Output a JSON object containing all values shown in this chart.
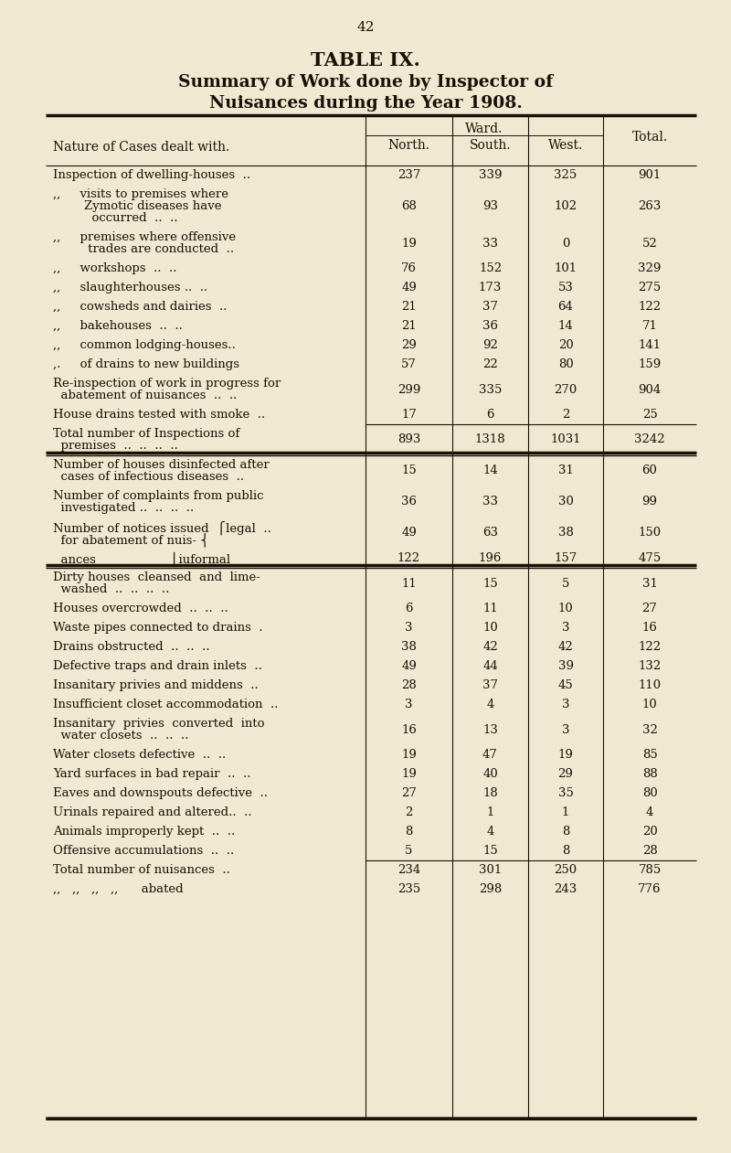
{
  "page_number": "42",
  "title_line1": "TABLE IX.",
  "title_line2": "Summary of Work done by Inspector of",
  "title_line3": "Nuisances during the Year 1908.",
  "bg_color": "#f0e8d0",
  "text_color": "#1a1008",
  "col_header_ward": "Ward.",
  "col_header_north": "North.",
  "col_header_south": "South.",
  "col_header_west": "West.",
  "col_header_total": "Total.",
  "col_header_nature": "Nature of Cases dealt with.",
  "rows": [
    {
      "lines": [
        "Inspection of dwelling-houses  .."
      ],
      "vals": [
        "237",
        "339",
        "325",
        "901"
      ],
      "sep_before": false,
      "sep_after": false,
      "thick_before": false,
      "thick_after": false
    },
    {
      "lines": [
        ",,     visits to premises where",
        "        Zymotic diseases have",
        "          occurred  ..  .."
      ],
      "vals": [
        "68",
        "93",
        "102",
        "263"
      ],
      "sep_before": false,
      "sep_after": false,
      "thick_before": false,
      "thick_after": false
    },
    {
      "lines": [
        ",,     premises where offensive",
        "         trades are conducted  .."
      ],
      "vals": [
        "19",
        "33",
        "0",
        "52"
      ],
      "sep_before": false,
      "sep_after": false,
      "thick_before": false,
      "thick_after": false
    },
    {
      "lines": [
        ",,     workshops  ..  .."
      ],
      "vals": [
        "76",
        "152",
        "101",
        "329"
      ],
      "sep_before": false,
      "sep_after": false,
      "thick_before": false,
      "thick_after": false
    },
    {
      "lines": [
        ",,     slaughterhouses ..  .."
      ],
      "vals": [
        "49",
        "173",
        "53",
        "275"
      ],
      "sep_before": false,
      "sep_after": false,
      "thick_before": false,
      "thick_after": false
    },
    {
      "lines": [
        ",,     cowsheds and dairies  .."
      ],
      "vals": [
        "21",
        "37",
        "64",
        "122"
      ],
      "sep_before": false,
      "sep_after": false,
      "thick_before": false,
      "thick_after": false
    },
    {
      "lines": [
        ",,     bakehouses  ..  .."
      ],
      "vals": [
        "21",
        "36",
        "14",
        "71"
      ],
      "sep_before": false,
      "sep_after": false,
      "thick_before": false,
      "thick_after": false
    },
    {
      "lines": [
        ",,     common lodging-houses.."
      ],
      "vals": [
        "29",
        "92",
        "20",
        "141"
      ],
      "sep_before": false,
      "sep_after": false,
      "thick_before": false,
      "thick_after": false
    },
    {
      "lines": [
        ",.     of drains to new buildings"
      ],
      "vals": [
        "57",
        "22",
        "80",
        "159"
      ],
      "sep_before": false,
      "sep_after": false,
      "thick_before": false,
      "thick_after": false
    },
    {
      "lines": [
        "Re-inspection of work in progress for",
        "  abatement of nuisances  ..  .."
      ],
      "vals": [
        "299",
        "335",
        "270",
        "904"
      ],
      "sep_before": false,
      "sep_after": false,
      "thick_before": false,
      "thick_after": false
    },
    {
      "lines": [
        "House drains tested with smoke  .."
      ],
      "vals": [
        "17",
        "6",
        "2",
        "25"
      ],
      "sep_before": false,
      "sep_after": false,
      "thick_before": false,
      "thick_after": false
    },
    {
      "lines": [
        "Total number of Inspections of",
        "  premises  ..  ..  ..  .."
      ],
      "vals": [
        "893",
        "1318",
        "1031",
        "3242"
      ],
      "sep_before": true,
      "sep_after": false,
      "thick_before": false,
      "thick_after": true
    },
    {
      "lines": [
        "Number of houses disinfected after",
        "  cases of infectious diseases  .."
      ],
      "vals": [
        "15",
        "14",
        "31",
        "60"
      ],
      "sep_before": false,
      "sep_after": false,
      "thick_before": false,
      "thick_after": false
    },
    {
      "lines": [
        "Number of complaints from public",
        "  investigated ..  ..  ..  .."
      ],
      "vals": [
        "36",
        "33",
        "30",
        "99"
      ],
      "sep_before": false,
      "sep_after": false,
      "thick_before": false,
      "thick_after": false
    },
    {
      "lines": [
        "Number of notices issued  ⎧legal  ..",
        "  for abatement of nuis- ⎨"
      ],
      "vals": [
        "49",
        "63",
        "38",
        "150"
      ],
      "sep_before": false,
      "sep_after": false,
      "thick_before": false,
      "thick_after": false
    },
    {
      "lines": [
        "  ances                   ⎩iuformal"
      ],
      "vals": [
        "122",
        "196",
        "157",
        "475"
      ],
      "sep_before": false,
      "sep_after": false,
      "thick_before": false,
      "thick_after": true
    },
    {
      "lines": [
        "Dirty houses  cleansed  and  lime-",
        "  washed  ..  ..  ..  .."
      ],
      "vals": [
        "11",
        "15",
        "5",
        "31"
      ],
      "sep_before": false,
      "sep_after": false,
      "thick_before": false,
      "thick_after": false
    },
    {
      "lines": [
        "Houses overcrowded  ..  ..  .."
      ],
      "vals": [
        "6",
        "11",
        "10",
        "27"
      ],
      "sep_before": false,
      "sep_after": false,
      "thick_before": false,
      "thick_after": false
    },
    {
      "lines": [
        "Waste pipes connected to drains  ."
      ],
      "vals": [
        "3",
        "10",
        "3",
        "16"
      ],
      "sep_before": false,
      "sep_after": false,
      "thick_before": false,
      "thick_after": false
    },
    {
      "lines": [
        "Drains obstructed  ..  ..  .."
      ],
      "vals": [
        "38",
        "42",
        "42",
        "122"
      ],
      "sep_before": false,
      "sep_after": false,
      "thick_before": false,
      "thick_after": false
    },
    {
      "lines": [
        "Defective traps and drain inlets  .."
      ],
      "vals": [
        "49",
        "44",
        "39",
        "132"
      ],
      "sep_before": false,
      "sep_after": false,
      "thick_before": false,
      "thick_after": false
    },
    {
      "lines": [
        "Insanitary privies and middens  .."
      ],
      "vals": [
        "28",
        "37",
        "45",
        "110"
      ],
      "sep_before": false,
      "sep_after": false,
      "thick_before": false,
      "thick_after": false
    },
    {
      "lines": [
        "Insufficient closet accommodation  .."
      ],
      "vals": [
        "3",
        "4",
        "3",
        "10"
      ],
      "sep_before": false,
      "sep_after": false,
      "thick_before": false,
      "thick_after": false
    },
    {
      "lines": [
        "Insanitary  privies  converted  into",
        "  water closets  ..  ..  .."
      ],
      "vals": [
        "16",
        "13",
        "3",
        "32"
      ],
      "sep_before": false,
      "sep_after": false,
      "thick_before": false,
      "thick_after": false
    },
    {
      "lines": [
        "Water closets defective  ..  .."
      ],
      "vals": [
        "19",
        "47",
        "19",
        "85"
      ],
      "sep_before": false,
      "sep_after": false,
      "thick_before": false,
      "thick_after": false
    },
    {
      "lines": [
        "Yard surfaces in bad repair  ..  .."
      ],
      "vals": [
        "19",
        "40",
        "29",
        "88"
      ],
      "sep_before": false,
      "sep_after": false,
      "thick_before": false,
      "thick_after": false
    },
    {
      "lines": [
        "Eaves and downspouts defective  .."
      ],
      "vals": [
        "27",
        "18",
        "35",
        "80"
      ],
      "sep_before": false,
      "sep_after": false,
      "thick_before": false,
      "thick_after": false
    },
    {
      "lines": [
        "Urinals repaired and altered..  .."
      ],
      "vals": [
        "2",
        "1",
        "1",
        "4"
      ],
      "sep_before": false,
      "sep_after": false,
      "thick_before": false,
      "thick_after": false
    },
    {
      "lines": [
        "Animals improperly kept  ..  .."
      ],
      "vals": [
        "8",
        "4",
        "8",
        "20"
      ],
      "sep_before": false,
      "sep_after": false,
      "thick_before": false,
      "thick_after": false
    },
    {
      "lines": [
        "Offensive accumulations  ..  .."
      ],
      "vals": [
        "5",
        "15",
        "8",
        "28"
      ],
      "sep_before": false,
      "sep_after": false,
      "thick_before": false,
      "thick_after": false
    },
    {
      "lines": [
        "Total number of nuisances  .."
      ],
      "vals": [
        "234",
        "301",
        "250",
        "785"
      ],
      "sep_before": true,
      "sep_after": false,
      "thick_before": false,
      "thick_after": false
    },
    {
      "lines": [
        ",,   ,,   ,,   ,,      abated"
      ],
      "vals": [
        "235",
        "298",
        "243",
        "776"
      ],
      "sep_before": false,
      "sep_after": false,
      "thick_before": false,
      "thick_after": false
    }
  ]
}
